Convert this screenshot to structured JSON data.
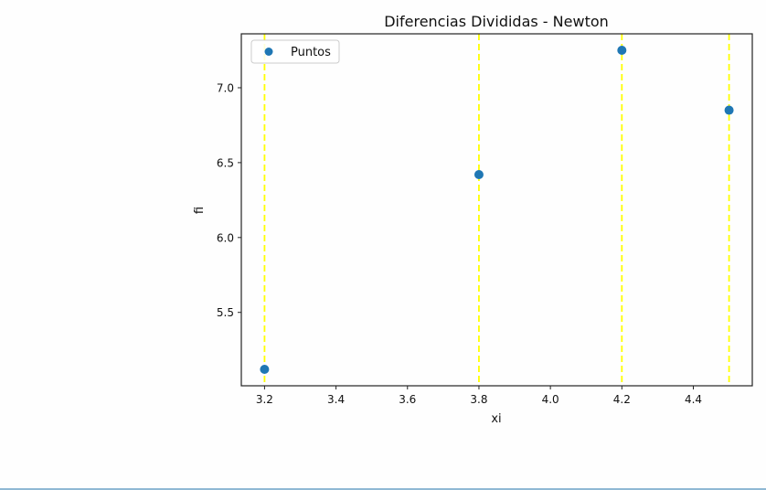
{
  "chart_data": {
    "type": "scatter",
    "title": "Diferencias Divididas - Newton",
    "xlabel": "xi",
    "ylabel": "fi",
    "xlim": [
      3.135,
      4.565
    ],
    "ylim": [
      5.01,
      7.36
    ],
    "grid": false,
    "legend_position": "upper left",
    "legend": [
      "Puntos"
    ],
    "series": [
      {
        "name": "Puntos",
        "color": "#1f77b4",
        "marker": "circle",
        "x": [
          3.2,
          3.8,
          4.2,
          4.5
        ],
        "y": [
          5.12,
          6.42,
          7.25,
          6.85
        ]
      }
    ],
    "vlines": {
      "x": [
        3.2,
        3.8,
        4.2,
        4.5
      ],
      "color": "#ffff00",
      "style": "dashed"
    },
    "xticks": [
      3.2,
      3.4,
      3.6,
      3.8,
      4.0,
      4.2,
      4.4
    ],
    "xtick_labels": [
      "3.2",
      "3.4",
      "3.6",
      "3.8",
      "4.0",
      "4.2",
      "4.4"
    ],
    "yticks": [
      5.5,
      6.0,
      6.5,
      7.0
    ],
    "ytick_labels": [
      "5.5",
      "6.0",
      "6.5",
      "7.0"
    ]
  },
  "colors": {
    "point": "#1f77b4",
    "vline": "#ffff00",
    "axis": "#222222",
    "bottom_bar": "#8fb8d4"
  }
}
